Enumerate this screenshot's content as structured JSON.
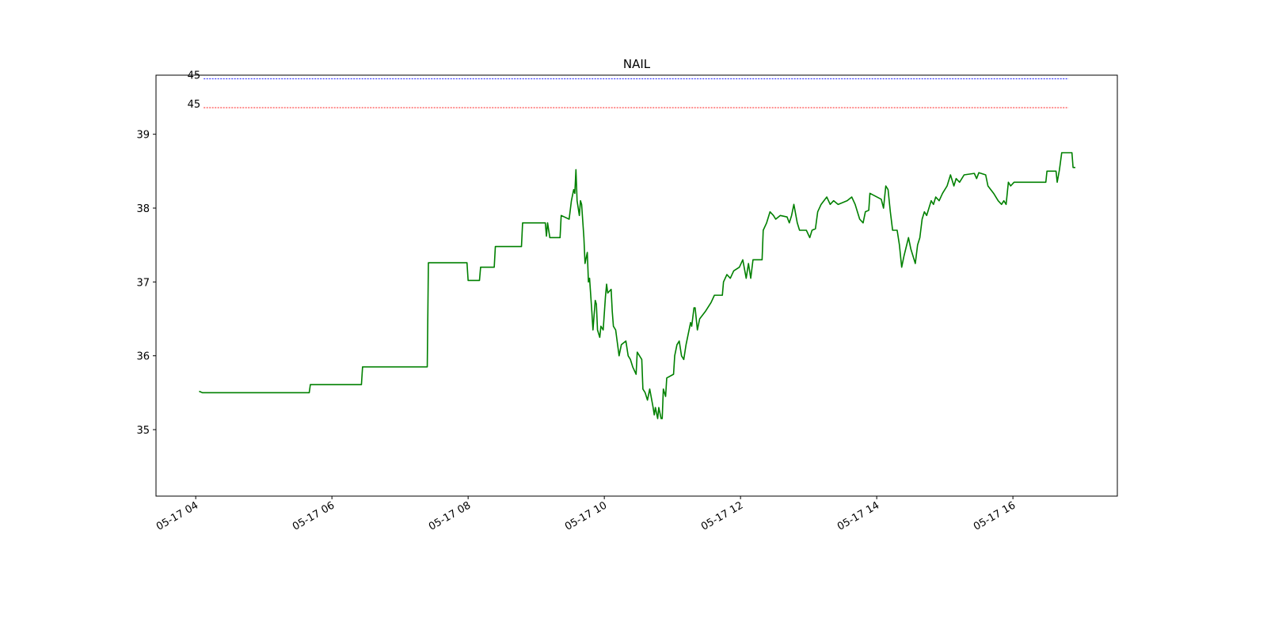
{
  "chart_data": {
    "type": "line",
    "title": "NAIL",
    "color": "#008000",
    "x": [
      "05-17 04:03",
      "05-17 04:06",
      "05-17 05:40",
      "05-17 05:41",
      "05-17 06:26",
      "05-17 06:27",
      "05-17 07:24",
      "05-17 07:25",
      "05-17 07:59",
      "05-17 08:00",
      "05-17 08:10",
      "05-17 08:11",
      "05-17 08:23",
      "05-17 08:24",
      "05-17 08:47",
      "05-17 08:48",
      "05-17 09:08",
      "05-17 09:09",
      "05-17 09:10",
      "05-17 09:12",
      "05-17 09:21",
      "05-17 09:22",
      "05-17 09:29",
      "05-17 09:31",
      "05-17 09:33",
      "05-17 09:34",
      "05-17 09:35",
      "05-17 09:36",
      "05-17 09:38",
      "05-17 09:39",
      "05-17 09:40",
      "05-17 09:42",
      "05-17 09:43",
      "05-17 09:45",
      "05-17 09:46",
      "05-17 09:47",
      "05-17 09:49",
      "05-17 09:50",
      "05-17 09:52",
      "05-17 09:53",
      "05-17 09:54",
      "05-17 09:56",
      "05-17 09:57",
      "05-17 09:59",
      "05-17 10:01",
      "05-17 10:02",
      "05-17 10:03",
      "05-17 10:06",
      "05-17 10:07",
      "05-17 10:08",
      "05-17 10:10",
      "05-17 10:13",
      "05-17 10:15",
      "05-17 10:19",
      "05-17 10:21",
      "05-17 10:23",
      "05-17 10:25",
      "05-17 10:28",
      "05-17 10:29",
      "05-17 10:33",
      "05-17 10:34",
      "05-17 10:36",
      "05-17 10:38",
      "05-17 10:40",
      "05-17 10:43",
      "05-17 10:44",
      "05-17 10:45",
      "05-17 10:47",
      "05-17 10:48",
      "05-17 10:50",
      "05-17 10:51",
      "05-17 10:52",
      "05-17 10:54",
      "05-17 10:55",
      "05-17 11:01",
      "05-17 11:02",
      "05-17 11:04",
      "05-17 11:06",
      "05-17 11:08",
      "05-17 11:10",
      "05-17 11:12",
      "05-17 11:14",
      "05-17 11:16",
      "05-17 11:17",
      "05-17 11:19",
      "05-17 11:20",
      "05-17 11:22",
      "05-17 11:24",
      "05-17 11:29",
      "05-17 11:34",
      "05-17 11:37",
      "05-17 11:44",
      "05-17 11:45",
      "05-17 11:48",
      "05-17 11:51",
      "05-17 11:54",
      "05-17 11:59",
      "05-17 12:02",
      "05-17 12:05",
      "05-17 12:07",
      "05-17 12:09",
      "05-17 12:11",
      "05-17 12:19",
      "05-17 12:20",
      "05-17 12:23",
      "05-17 12:26",
      "05-17 12:29",
      "05-17 12:31",
      "05-17 12:35",
      "05-17 12:41",
      "05-17 12:43",
      "05-17 12:45",
      "05-17 12:47",
      "05-17 12:50",
      "05-17 12:52",
      "05-17 12:58",
      "05-17 13:01",
      "05-17 13:03",
      "05-17 13:06",
      "05-17 13:08",
      "05-17 13:11",
      "05-17 13:16",
      "05-17 13:19",
      "05-17 13:22",
      "05-17 13:26",
      "05-17 13:34",
      "05-17 13:38",
      "05-17 13:41",
      "05-17 13:45",
      "05-17 13:48",
      "05-17 13:50",
      "05-17 13:53",
      "05-17 13:54",
      "05-17 14:04",
      "05-17 14:06",
      "05-17 14:08",
      "05-17 14:10",
      "05-17 14:12",
      "05-17 14:14",
      "05-17 14:18",
      "05-17 14:20",
      "05-17 14:21",
      "05-17 14:22",
      "05-17 14:24",
      "05-17 14:28",
      "05-17 14:30",
      "05-17 14:34",
      "05-17 14:36",
      "05-17 14:38",
      "05-17 14:40",
      "05-17 14:42",
      "05-17 14:44",
      "05-17 14:48",
      "05-17 14:50",
      "05-17 14:52",
      "05-17 14:55",
      "05-17 14:58",
      "05-17 15:02",
      "05-17 15:05",
      "05-17 15:08",
      "05-17 15:10",
      "05-17 15:13",
      "05-17 15:17",
      "05-17 15:26",
      "05-17 15:28",
      "05-17 15:30",
      "05-17 15:36",
      "05-17 15:38",
      "05-17 15:43",
      "05-17 15:47",
      "05-17 15:50",
      "05-17 15:52",
      "05-17 15:54",
      "05-17 15:56",
      "05-17 15:58",
      "05-17 16:01",
      "05-17 16:29",
      "05-17 16:30",
      "05-17 16:38",
      "05-17 16:39",
      "05-17 16:41",
      "05-17 16:43",
      "05-17 16:52",
      "05-17 16:53",
      "05-17 16:55"
    ],
    "values": [
      35.52,
      35.5,
      35.5,
      35.61,
      35.61,
      35.85,
      35.85,
      37.26,
      37.26,
      37.02,
      37.02,
      37.2,
      37.2,
      37.48,
      37.48,
      37.8,
      37.8,
      37.62,
      37.8,
      37.6,
      37.6,
      37.9,
      37.85,
      38.1,
      38.25,
      38.2,
      38.52,
      38.1,
      37.9,
      38.1,
      38.05,
      37.6,
      37.25,
      37.4,
      37.0,
      37.05,
      36.6,
      36.35,
      36.75,
      36.7,
      36.35,
      36.25,
      36.4,
      36.35,
      36.8,
      36.97,
      36.85,
      36.9,
      36.6,
      36.4,
      36.35,
      36.0,
      36.15,
      36.2,
      36.0,
      35.95,
      35.85,
      35.75,
      36.05,
      35.95,
      35.55,
      35.5,
      35.4,
      35.55,
      35.3,
      35.2,
      35.3,
      35.15,
      35.3,
      35.15,
      35.15,
      35.55,
      35.45,
      35.7,
      35.75,
      36.0,
      36.15,
      36.2,
      36.0,
      35.95,
      36.15,
      36.3,
      36.45,
      36.4,
      36.65,
      36.65,
      36.35,
      36.5,
      36.6,
      36.72,
      36.82,
      36.82,
      37.0,
      37.1,
      37.05,
      37.15,
      37.2,
      37.3,
      37.05,
      37.25,
      37.05,
      37.3,
      37.3,
      37.7,
      37.8,
      37.95,
      37.9,
      37.85,
      37.9,
      37.88,
      37.8,
      37.9,
      38.05,
      37.8,
      37.7,
      37.7,
      37.6,
      37.7,
      37.72,
      37.95,
      38.05,
      38.15,
      38.05,
      38.1,
      38.05,
      38.1,
      38.15,
      38.05,
      37.85,
      37.8,
      37.95,
      37.97,
      38.2,
      38.12,
      38.0,
      38.3,
      38.25,
      37.95,
      37.7,
      37.7,
      37.5,
      37.35,
      37.2,
      37.35,
      37.6,
      37.45,
      37.25,
      37.5,
      37.6,
      37.85,
      37.95,
      37.9,
      38.1,
      38.05,
      38.15,
      38.1,
      38.2,
      38.3,
      38.45,
      38.3,
      38.4,
      38.35,
      38.45,
      38.47,
      38.4,
      38.48,
      38.45,
      38.3,
      38.2,
      38.1,
      38.05,
      38.1,
      38.05,
      38.35,
      38.3,
      38.35,
      38.35,
      38.5,
      38.5,
      38.35,
      38.52,
      38.75,
      38.75,
      38.55,
      38.55
    ],
    "xlim": [
      "05-17 03:25",
      "05-17 17:32"
    ],
    "xticks": [
      {
        "value": "05-17 04:00",
        "label": "05-17 04"
      },
      {
        "value": "05-17 06:00",
        "label": "05-17 06"
      },
      {
        "value": "05-17 08:00",
        "label": "05-17 08"
      },
      {
        "value": "05-17 10:00",
        "label": "05-17 10"
      },
      {
        "value": "05-17 12:00",
        "label": "05-17 12"
      },
      {
        "value": "05-17 14:00",
        "label": "05-17 14"
      },
      {
        "value": "05-17 16:00",
        "label": "05-17 16"
      }
    ],
    "ylim": [
      34.1,
      39.8
    ],
    "yticks": [
      35,
      36,
      37,
      38,
      39
    ],
    "reference_lines": [
      {
        "label": "45",
        "value": 39.75,
        "color": "#0000ff",
        "x": [
          "05-17 04:07",
          "05-17 16:49"
        ]
      },
      {
        "label": "45",
        "value": 39.36,
        "color": "#ff0000",
        "x": [
          "05-17 04:07",
          "05-17 16:49"
        ]
      }
    ]
  }
}
